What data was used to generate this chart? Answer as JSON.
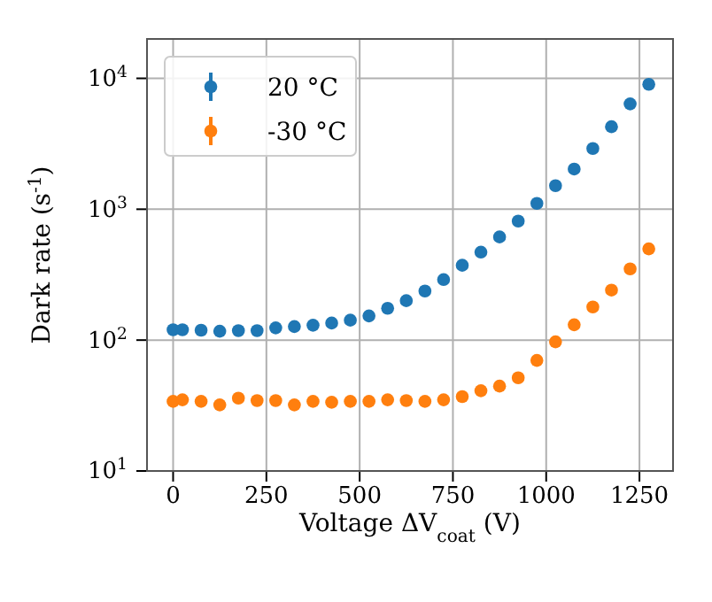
{
  "chart_data": {
    "type": "scatter",
    "xlabel": "Voltage ΔV$_{coat}$ (V)",
    "ylabel": "Dark rate (s$^{-1}$)",
    "x": [
      0,
      25,
      75,
      125,
      175,
      225,
      275,
      325,
      375,
      425,
      475,
      525,
      575,
      625,
      675,
      725,
      775,
      825,
      875,
      925,
      975,
      1025,
      1075,
      1125,
      1175,
      1225,
      1275
    ],
    "series": [
      {
        "name": "20 °C",
        "color": "#1f77b4",
        "values": [
          120,
          120,
          119,
          117,
          118,
          118,
          124,
          127,
          130,
          135,
          142,
          153,
          175,
          200,
          237,
          290,
          373,
          470,
          614,
          812,
          1108,
          1513,
          2028,
          2910,
          4270,
          6380,
          9000
        ]
      },
      {
        "name": "-30 °C",
        "color": "#ff7f0e",
        "values": [
          34,
          35,
          34,
          32,
          36,
          34.5,
          34.5,
          32,
          34,
          33.5,
          34,
          34,
          35,
          34.5,
          34,
          35,
          37,
          41,
          44.5,
          51.5,
          70,
          97,
          131,
          179,
          241,
          350,
          498
        ]
      }
    ],
    "xlim": [
      -70,
      1340
    ],
    "xticks": [
      0,
      250,
      500,
      750,
      1000,
      1250
    ],
    "ylim": [
      10,
      20000
    ],
    "log": true,
    "yticks": [
      {
        "value": 10,
        "label": "10$^{1}$"
      },
      {
        "value": 100,
        "label": "10$^{2}$"
      },
      {
        "value": 1000,
        "label": "10$^{3}$"
      },
      {
        "value": 10000,
        "label": "10$^{4}$"
      }
    ],
    "grid": true,
    "legend": "top left",
    "marker": "circle"
  }
}
